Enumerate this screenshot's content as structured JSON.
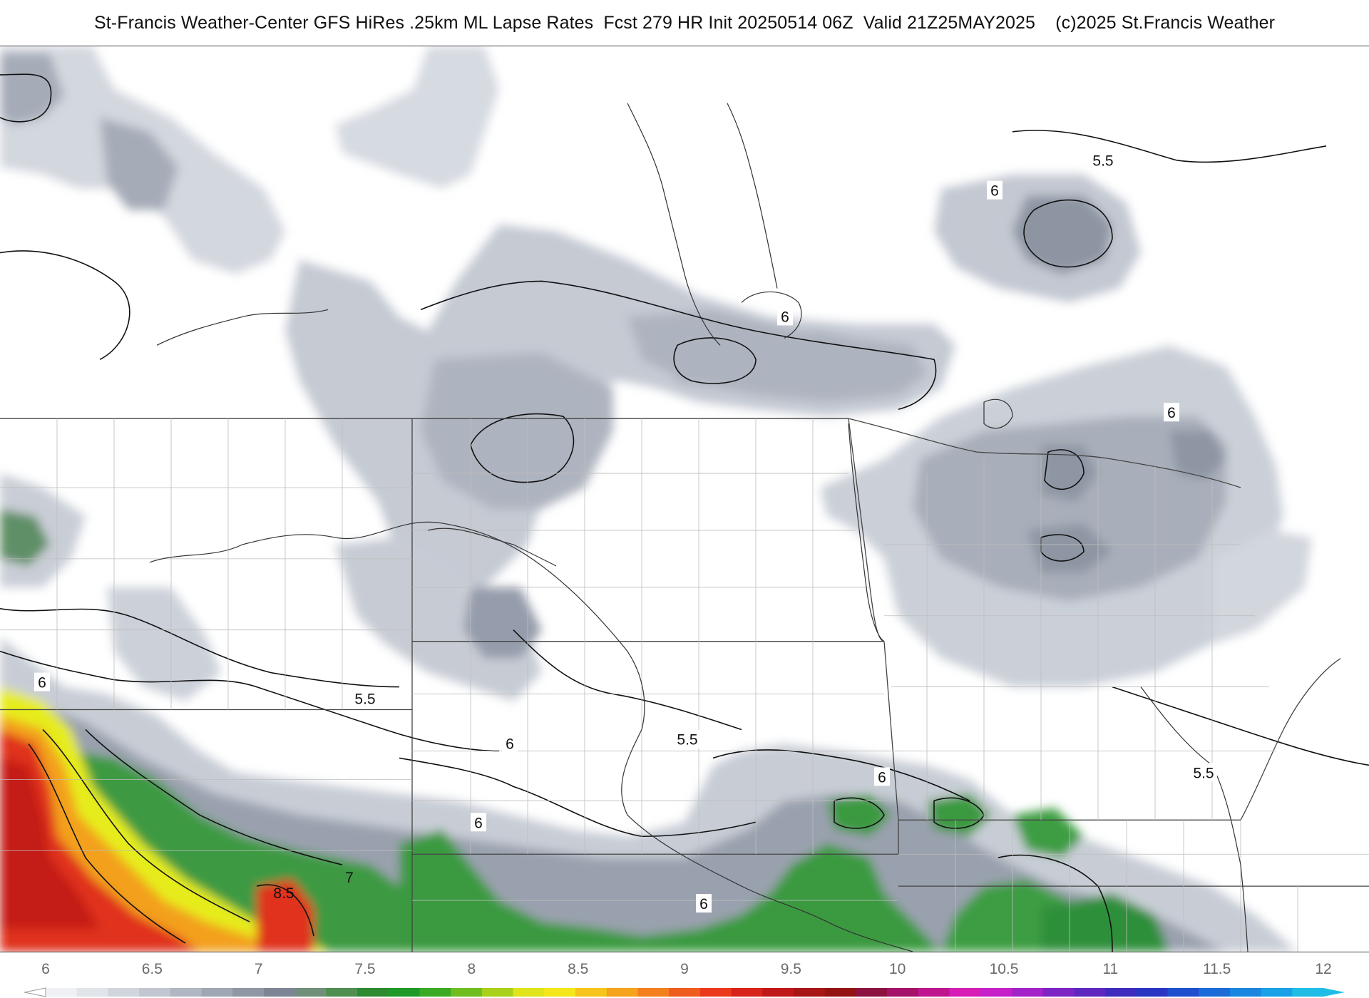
{
  "title": "St-Francis Weather-Center GFS HiRes .25km ML Lapse Rates  Fcst 279 HR Init 20250514 06Z  Valid 21Z25MAY2025    (c)2025 St.Francis Weather",
  "colors": {
    "background": "#ffffff",
    "border": "#222222",
    "contour": "#111111",
    "light_gray": "#e3e5ea",
    "mid_gray": "#c3c8d1",
    "dark_gray": "#a7adb9",
    "slate": "#8a929f",
    "green_dark": "#2f8f3a",
    "green_mid": "#3fa143",
    "green_light": "#7cc12a",
    "yellow": "#e9ee1a",
    "orange": "#f2a81c",
    "red": "#e8401c",
    "dark_red": "#c71e14"
  },
  "contour_labels": [
    {
      "text": "5.5"
    },
    {
      "text": "6"
    },
    {
      "text": "6"
    },
    {
      "text": "6"
    },
    {
      "text": "6"
    },
    {
      "text": "6"
    },
    {
      "text": "5.5"
    },
    {
      "text": "6"
    },
    {
      "text": "5.5"
    },
    {
      "text": "6"
    },
    {
      "text": "6"
    },
    {
      "text": "6"
    },
    {
      "text": "5.5"
    },
    {
      "text": "7"
    },
    {
      "text": "8.5"
    }
  ],
  "legend": {
    "labels": [
      "6",
      "6.5",
      "7",
      "7.5",
      "8",
      "8.5",
      "9",
      "9.5",
      "10",
      "10.5",
      "11",
      "11.5",
      "12"
    ],
    "min": 6,
    "max": 12,
    "colors": [
      "#f0f1f4",
      "#e1e4e9",
      "#d1d5dd",
      "#c1c6d0",
      "#b0b6c2",
      "#a0a7b4",
      "#8f97a5",
      "#7d8595",
      "#6f8f78",
      "#4f8f50",
      "#2d8a30",
      "#1f9a28",
      "#3aaa24",
      "#6fbd1f",
      "#a9d11a",
      "#dfe51a",
      "#f5e71a",
      "#f7c41b",
      "#f5a21c",
      "#f3801c",
      "#ef5d1c",
      "#ea3a1b",
      "#d8231a",
      "#c01818",
      "#a81515",
      "#931313",
      "#8c1240",
      "#a4126a",
      "#bf1690",
      "#d71db5",
      "#c620c9",
      "#a323c9",
      "#7f24c4",
      "#5f27bf",
      "#3f2bbd",
      "#2a35c4",
      "#1e4fcf",
      "#1b6bd8",
      "#1a86e0",
      "#19a0e6",
      "#1fbde6"
    ]
  }
}
